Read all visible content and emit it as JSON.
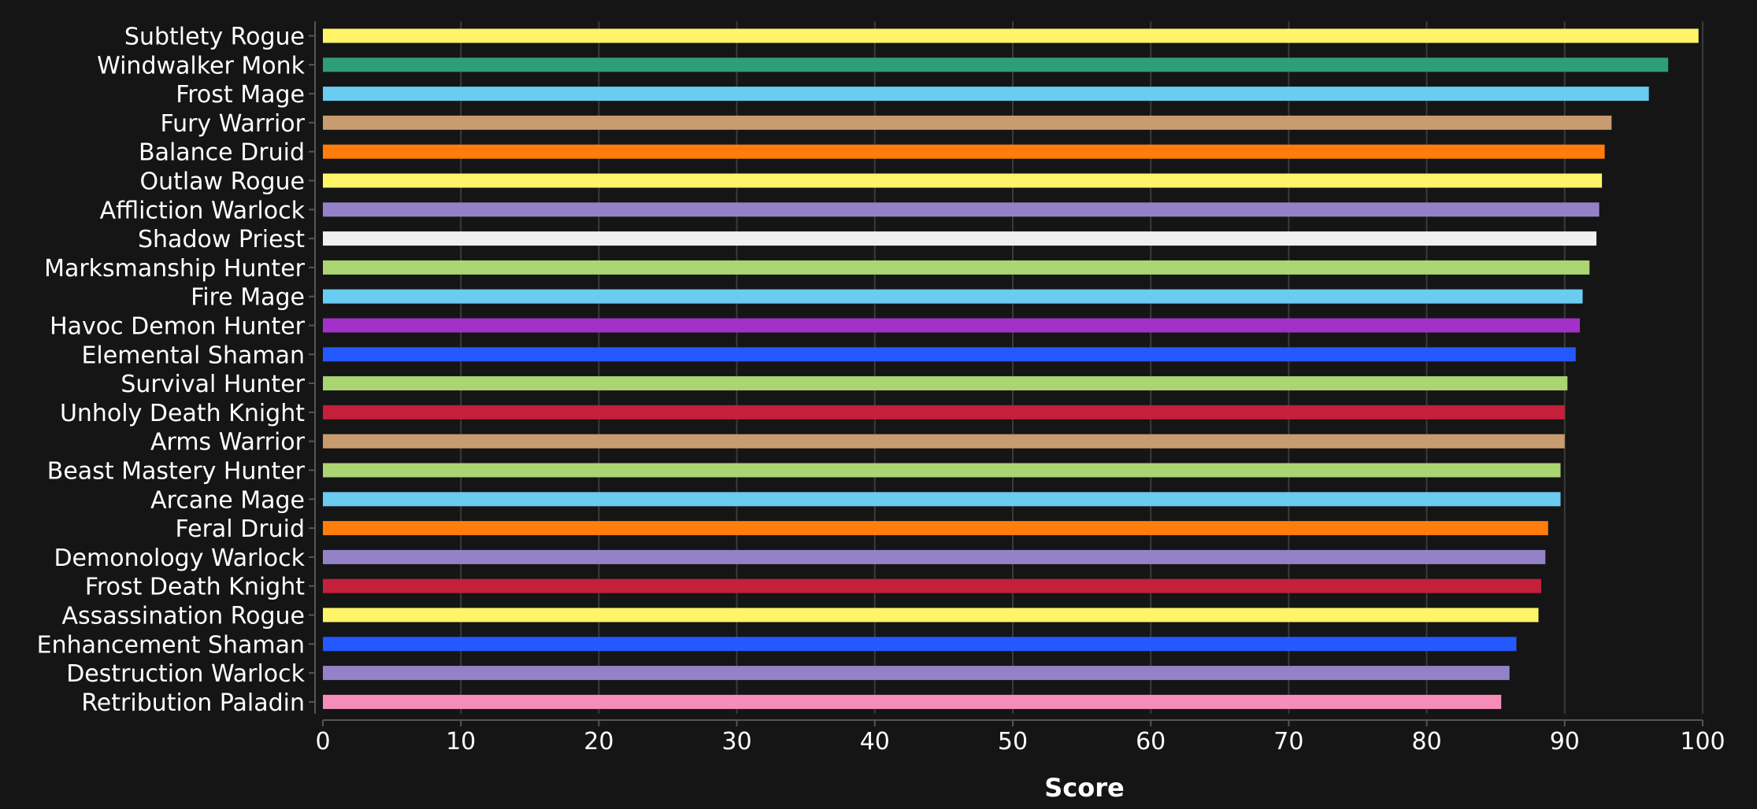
{
  "chart_data": {
    "type": "bar",
    "orientation": "horizontal",
    "title": "",
    "xlabel": "Score",
    "ylabel": "",
    "xlim": [
      0,
      100
    ],
    "xticks": [
      0,
      10,
      20,
      30,
      40,
      50,
      60,
      70,
      80,
      90,
      100
    ],
    "grid": true,
    "legend": "none",
    "categories": [
      "Subtlety Rogue",
      "Windwalker Monk",
      "Frost Mage",
      "Fury Warrior",
      "Balance Druid",
      "Outlaw Rogue",
      "Affliction Warlock",
      "Shadow Priest",
      "Marksmanship Hunter",
      "Fire Mage",
      "Havoc Demon Hunter",
      "Elemental Shaman",
      "Survival Hunter",
      "Unholy Death Knight",
      "Arms Warrior",
      "Beast Mastery Hunter",
      "Arcane Mage",
      "Feral Druid",
      "Demonology Warlock",
      "Frost Death Knight",
      "Assassination Rogue",
      "Enhancement Shaman",
      "Destruction Warlock",
      "Retribution Paladin"
    ],
    "values": [
      99.7,
      97.5,
      96.1,
      93.4,
      92.9,
      92.7,
      92.5,
      92.3,
      91.8,
      91.3,
      91.1,
      90.8,
      90.2,
      90.0,
      90.0,
      89.7,
      89.7,
      88.8,
      88.6,
      88.3,
      88.1,
      86.5,
      86.0,
      85.4
    ],
    "colors": [
      "#FFF468",
      "#2E9E76",
      "#69CCF0",
      "#C79C6E",
      "#FF7D0A",
      "#FFF468",
      "#9482C9",
      "#F0F0F0",
      "#ABD473",
      "#69CCF0",
      "#A330C9",
      "#2459FF",
      "#ABD473",
      "#C41F3B",
      "#C79C6E",
      "#ABD473",
      "#69CCF0",
      "#FF7D0A",
      "#9482C9",
      "#C41F3B",
      "#FFF468",
      "#2459FF",
      "#9482C9",
      "#F58CBA"
    ]
  }
}
